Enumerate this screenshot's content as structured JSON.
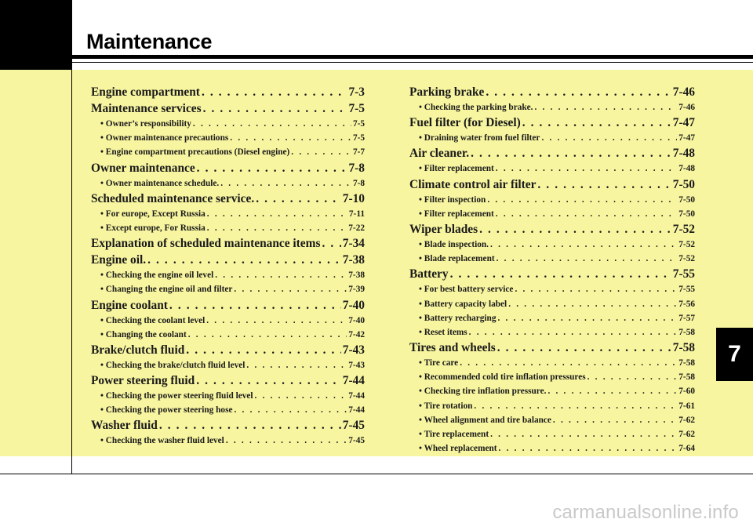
{
  "header": {
    "title": "Maintenance"
  },
  "chapter_tab": {
    "number": "7"
  },
  "watermark": "carmanualsonline.info",
  "toc": {
    "left": [
      {
        "label": "Engine compartment",
        "page": "7-3",
        "subs": []
      },
      {
        "label": "Maintenance services",
        "page": "7-5",
        "subs": [
          {
            "label": "• Owner’s responsibility",
            "page": "7-5"
          },
          {
            "label": "• Owner maintenance precautions",
            "page": "7-5"
          },
          {
            "label": "• Engine compartment precautions (Diesel engine)",
            "page": "7-7"
          }
        ]
      },
      {
        "label": "Owner maintenance",
        "page": "7-8",
        "subs": [
          {
            "label": "• Owner maintenance schedule.",
            "page": "7-8"
          }
        ]
      },
      {
        "label": "Scheduled maintenance service.",
        "page": "7-10",
        "subs": [
          {
            "label": "• For europe, Except Russia",
            "page": "7-11"
          },
          {
            "label": "• Except europe, For Russia",
            "page": "7-22"
          }
        ]
      },
      {
        "label": "Explanation of scheduled maintenance items",
        "page": "7-34",
        "subs": []
      },
      {
        "label": "Engine oil.",
        "page": "7-38",
        "subs": [
          {
            "label": "• Checking the engine oil level",
            "page": "7-38"
          },
          {
            "label": "• Changing the engine oil and filter",
            "page": "7-39"
          }
        ]
      },
      {
        "label": "Engine coolant",
        "page": "7-40",
        "subs": [
          {
            "label": "• Checking the coolant level",
            "page": "7-40"
          },
          {
            "label": "• Changing the coolant",
            "page": "7-42"
          }
        ]
      },
      {
        "label": "Brake/clutch fluid",
        "page": "7-43",
        "subs": [
          {
            "label": "• Checking the brake/clutch fluid level",
            "page": "7-43"
          }
        ]
      },
      {
        "label": "Power steering fluid",
        "page": "7-44",
        "subs": [
          {
            "label": "• Checking the power steering fluid level",
            "page": "7-44"
          },
          {
            "label": "• Checking the power steering hose",
            "page": "7-44"
          }
        ]
      },
      {
        "label": "Washer fluid",
        "page": "7-45",
        "subs": [
          {
            "label": "• Checking the washer fluid level",
            "page": "7-45"
          }
        ]
      }
    ],
    "right": [
      {
        "label": "Parking brake",
        "page": "7-46",
        "subs": [
          {
            "label": "• Checking the parking brake.",
            "page": "7-46"
          }
        ]
      },
      {
        "label": "Fuel filter (for Diesel)",
        "page": "7-47",
        "subs": [
          {
            "label": "• Draining water from fuel filter",
            "page": "7-47"
          }
        ]
      },
      {
        "label": "Air cleaner.",
        "page": "7-48",
        "subs": [
          {
            "label": "• Filter replacement",
            "page": "7-48"
          }
        ]
      },
      {
        "label": "Climate control air filter",
        "page": "7-50",
        "subs": [
          {
            "label": "• Filter inspection",
            "page": "7-50"
          },
          {
            "label": "• Filter replacement",
            "page": "7-50"
          }
        ]
      },
      {
        "label": "Wiper blades",
        "page": "7-52",
        "subs": [
          {
            "label": "• Blade inspection.",
            "page": "7-52"
          },
          {
            "label": "• Blade replacement",
            "page": "7-52"
          }
        ]
      },
      {
        "label": "Battery",
        "page": "7-55",
        "subs": [
          {
            "label": "• For best battery service",
            "page": "7-55"
          },
          {
            "label": "• Battery capacity label",
            "page": "7-56"
          },
          {
            "label": "• Battery recharging",
            "page": "7-57"
          },
          {
            "label": "• Reset items",
            "page": "7-58"
          }
        ]
      },
      {
        "label": "Tires and wheels",
        "page": "7-58",
        "subs": [
          {
            "label": "• Tire care",
            "page": "7-58"
          },
          {
            "label": "• Recommended cold tire inflation pressures",
            "page": "7-58"
          },
          {
            "label": "• Checking tire inflation pressure.",
            "page": "7-60"
          },
          {
            "label": "• Tire rotation",
            "page": "7-61"
          },
          {
            "label": "• Wheel alignment and tire balance",
            "page": "7-62"
          },
          {
            "label": "• Tire replacement",
            "page": "7-62"
          },
          {
            "label": "• Wheel replacement",
            "page": "7-64"
          }
        ]
      }
    ]
  }
}
